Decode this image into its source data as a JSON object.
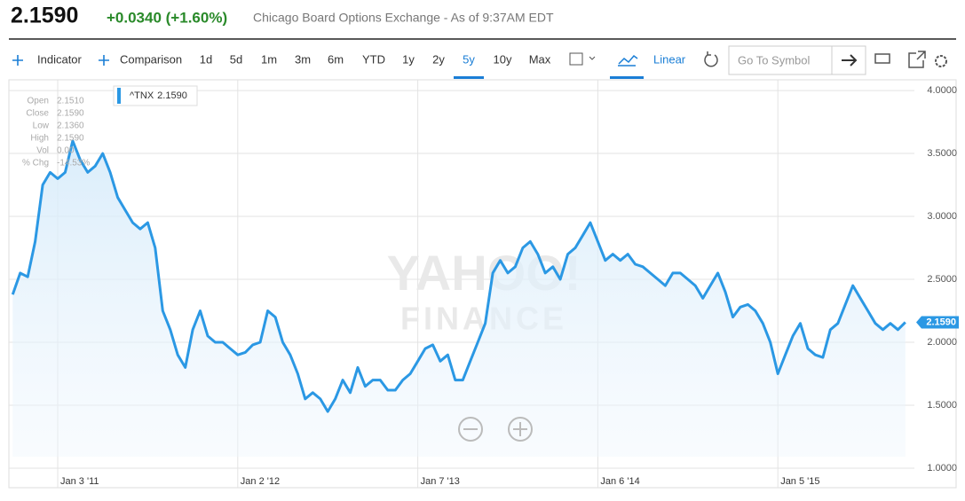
{
  "header": {
    "price": "2.1590",
    "change": "+0.0340 (+1.60%)",
    "source": "Chicago Board Options Exchange - As of 9:37AM EDT"
  },
  "toolbar": {
    "items": [
      "Indicator",
      "Comparison",
      "1d",
      "5d",
      "1m",
      "3m",
      "6m",
      "YTD",
      "1y",
      "2y",
      "5y",
      "10y",
      "Max"
    ],
    "selected_index": 10,
    "scale": "Linear",
    "search_placeholder": "Go To Symbol"
  },
  "info_panel": [
    {
      "label": "Open",
      "value": "2.1510"
    },
    {
      "label": "Close",
      "value": "2.1590"
    },
    {
      "label": "Low",
      "value": "2.1360"
    },
    {
      "label": "High",
      "value": "2.1590"
    },
    {
      "label": "Vol",
      "value": "0.00"
    },
    {
      "label": "% Chg",
      "value": "-14.53%"
    }
  ],
  "watermark": [
    "YAHOO!",
    "FINANCE"
  ],
  "chart_data": {
    "type": "line",
    "categories": [
      null,
      null,
      null,
      null,
      null,
      null,
      "Jan 3 '11",
      null,
      null,
      null,
      null,
      null,
      null,
      null,
      null,
      null,
      null,
      null,
      null,
      null,
      null,
      null,
      null,
      null,
      null,
      null,
      null,
      null,
      null,
      null,
      "Jan 2 '12",
      null,
      null,
      null,
      null,
      null,
      null,
      null,
      null,
      null,
      null,
      null,
      null,
      null,
      null,
      null,
      null,
      null,
      null,
      null,
      null,
      null,
      null,
      null,
      "Jan 7 '13",
      null,
      null,
      null,
      null,
      null,
      null,
      null,
      null,
      null,
      null,
      null,
      null,
      null,
      null,
      null,
      null,
      null,
      null,
      null,
      null,
      null,
      null,
      null,
      "Jan 6 '14",
      null,
      null,
      null,
      null,
      null,
      null,
      null,
      null,
      null,
      null,
      null,
      null,
      null,
      null,
      null,
      null,
      null,
      null,
      null,
      null,
      null,
      null,
      null,
      "Jan 5 '15",
      null,
      null,
      null,
      null,
      null,
      null,
      null,
      null,
      null,
      null,
      null,
      null,
      null,
      null,
      null,
      null,
      null
    ],
    "series": [
      {
        "name": "^TNX",
        "color": "#2b98e4",
        "current_label": "2.1590",
        "values": [
          2.38,
          2.55,
          2.52,
          2.8,
          3.25,
          3.35,
          3.3,
          3.35,
          3.6,
          3.45,
          3.35,
          3.4,
          3.5,
          3.35,
          3.15,
          3.05,
          2.95,
          2.9,
          2.95,
          2.75,
          2.25,
          2.1,
          1.9,
          1.8,
          2.1,
          2.25,
          2.05,
          2.0,
          2.0,
          1.95,
          1.9,
          1.92,
          1.98,
          2.0,
          2.25,
          2.2,
          2.0,
          1.9,
          1.75,
          1.55,
          1.6,
          1.55,
          1.45,
          1.55,
          1.7,
          1.6,
          1.8,
          1.65,
          1.7,
          1.7,
          1.62,
          1.62,
          1.7,
          1.75,
          1.85,
          1.95,
          1.98,
          1.85,
          1.9,
          1.7,
          1.7,
          1.85,
          2.0,
          2.15,
          2.55,
          2.65,
          2.55,
          2.6,
          2.75,
          2.8,
          2.7,
          2.55,
          2.6,
          2.5,
          2.7,
          2.75,
          2.85,
          2.95,
          2.8,
          2.65,
          2.7,
          2.65,
          2.7,
          2.62,
          2.6,
          2.55,
          2.5,
          2.45,
          2.55,
          2.55,
          2.5,
          2.45,
          2.35,
          2.45,
          2.55,
          2.4,
          2.2,
          2.28,
          2.3,
          2.25,
          2.15,
          2.0,
          1.75,
          1.9,
          2.05,
          2.15,
          1.95,
          1.9,
          1.88,
          2.1,
          2.15,
          2.3,
          2.45,
          2.35,
          2.25,
          2.15,
          2.1,
          2.15,
          2.1,
          2.159
        ]
      }
    ],
    "ylim": [
      0.845,
      4.085
    ],
    "yticks": [
      {
        "value": 1,
        "label": "1.0000"
      },
      {
        "value": 1.5,
        "label": "1.5000"
      },
      {
        "value": 2,
        "label": "2.0000"
      },
      {
        "value": 2.5,
        "label": "2.5000"
      },
      {
        "value": 3,
        "label": "3.0000"
      },
      {
        "value": 3.5,
        "label": "3.5000"
      },
      {
        "value": 4,
        "label": "4.0000"
      }
    ],
    "grid": true
  }
}
